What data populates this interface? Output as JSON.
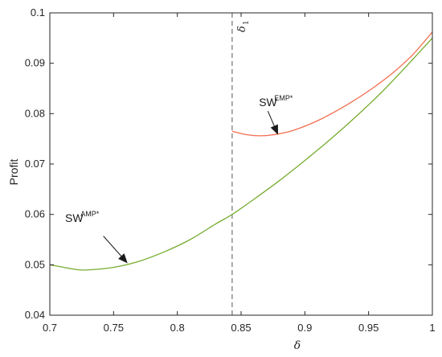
{
  "chart_data": {
    "type": "line",
    "xlabel": "δ",
    "ylabel": "Profit",
    "xlim": [
      0.7,
      1.0
    ],
    "ylim": [
      0.04,
      0.1
    ],
    "x_ticks": [
      0.7,
      0.75,
      0.8,
      0.85,
      0.9,
      0.95,
      1.0
    ],
    "x_tick_labels": [
      "0.7",
      "0.75",
      "0.8",
      "0.85",
      "0.9",
      "0.95",
      "1"
    ],
    "y_ticks": [
      0.04,
      0.05,
      0.06,
      0.07,
      0.08,
      0.09,
      0.1
    ],
    "y_tick_labels": [
      "0.04",
      "0.05",
      "0.06",
      "0.07",
      "0.08",
      "0.09",
      "0.1"
    ],
    "grid": false,
    "series": [
      {
        "color": "#77ac30",
        "x": [
          0.7,
          0.72,
          0.73,
          0.75,
          0.77,
          0.79,
          0.81,
          0.83,
          0.843,
          0.86,
          0.88,
          0.9,
          0.92,
          0.94,
          0.96,
          0.98,
          1.0
        ],
        "y": [
          0.05,
          0.0491,
          0.049,
          0.0495,
          0.0507,
          0.0526,
          0.055,
          0.0581,
          0.06,
          0.063,
          0.0667,
          0.0707,
          0.0749,
          0.0794,
          0.0842,
          0.0895,
          0.095
        ]
      },
      {
        "color": "#f26d4f",
        "x": [
          0.843,
          0.855,
          0.865,
          0.875,
          0.89,
          0.91,
          0.93,
          0.95,
          0.97,
          0.985,
          1.0
        ],
        "y": [
          0.0765,
          0.0758,
          0.0756,
          0.0758,
          0.0766,
          0.0786,
          0.0813,
          0.0845,
          0.0883,
          0.0918,
          0.0962
        ]
      }
    ],
    "vline": {
      "x": 0.843,
      "label": "δ",
      "label_sub": "1"
    },
    "annotations": [
      {
        "text": "SW",
        "sup": "AMP*",
        "label_at": [
          0.712,
          0.0585
        ],
        "arrow_from": [
          0.742,
          0.0557
        ],
        "arrow_to": [
          0.761,
          0.0503
        ]
      },
      {
        "text": "SW",
        "sup": "EMP*",
        "label_at": [
          0.864,
          0.0815
        ],
        "arrow_from": [
          0.871,
          0.0805
        ],
        "arrow_to": [
          0.879,
          0.0758
        ]
      }
    ]
  }
}
